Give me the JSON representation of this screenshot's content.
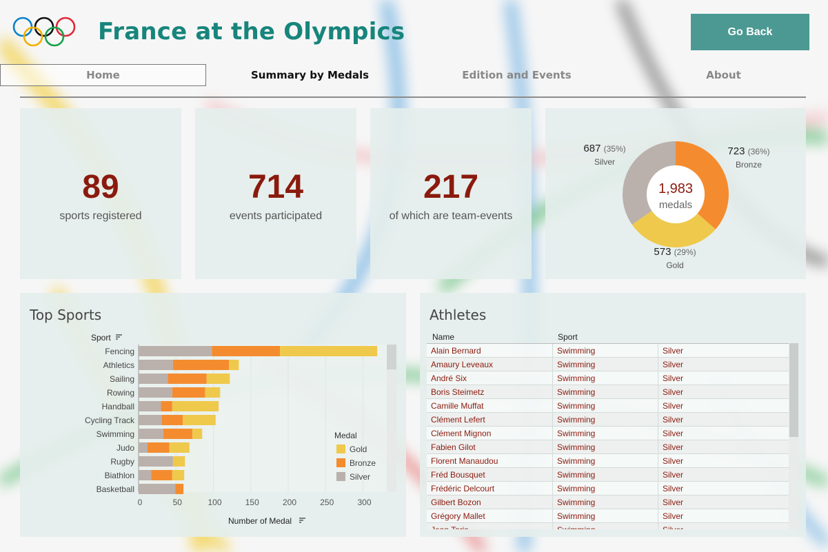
{
  "header": {
    "title": "France at the Olympics",
    "go_back_label": "Go Back"
  },
  "nav": {
    "tabs": [
      "Home",
      "Summary by Medals",
      "Edition and Events",
      "About"
    ],
    "active": "Summary by Medals"
  },
  "kpis": [
    {
      "value": "89",
      "label": "sports registered"
    },
    {
      "value": "714",
      "label": "events participated"
    },
    {
      "value": "217",
      "label": "of which are team-events"
    }
  ],
  "medals_total": {
    "value": "1,983",
    "label": "medals"
  },
  "medal_breakdown": {
    "silver": {
      "value": "687",
      "pct": "(35%)",
      "label": "Silver"
    },
    "bronze": {
      "value": "723",
      "pct": "(36%)",
      "label": "Bronze"
    },
    "gold": {
      "value": "573",
      "pct": "(29%)",
      "label": "Gold"
    }
  },
  "top_sports": {
    "title": "Top Sports",
    "axis_field": "Sport",
    "measure_label": "Number of Medal"
  },
  "colors": {
    "gold": "#efc94c",
    "bronze": "#f48c2f",
    "silver": "#bab0ac",
    "accent": "#17857c",
    "value_red": "#8b1a0e"
  },
  "chart_data": [
    {
      "type": "pie",
      "categories": [
        "Gold",
        "Bronze",
        "Silver"
      ],
      "values": [
        573,
        723,
        687
      ],
      "center_text": "1,983 medals"
    },
    {
      "type": "bar",
      "orientation": "horizontal",
      "stacked": true,
      "categories": [
        "Fencing",
        "Athletics",
        "Sailing",
        "Rowing",
        "Handball",
        "Cycling Track",
        "Swimming",
        "Judo",
        "Rugby",
        "Biathlon",
        "Basketball"
      ],
      "series": [
        {
          "name": "Silver",
          "values": [
            98,
            46,
            39,
            45,
            30,
            31,
            33,
            12,
            46,
            17,
            49
          ]
        },
        {
          "name": "Bronze",
          "values": [
            91,
            75,
            52,
            44,
            15,
            28,
            39,
            29,
            0,
            28,
            11
          ]
        },
        {
          "name": "Gold",
          "values": [
            130,
            13,
            31,
            20,
            62,
            44,
            13,
            27,
            16,
            16,
            0
          ]
        }
      ],
      "xlabel": "Number of Medal",
      "ylabel": "Sport",
      "xlim": [
        0,
        325
      ],
      "xticks": [
        0,
        50,
        100,
        150,
        200,
        250,
        300
      ],
      "legend": {
        "title": "Medal",
        "items": [
          "Gold",
          "Bronze",
          "Silver"
        ],
        "placement": "right"
      },
      "grid": true
    }
  ],
  "athletes": {
    "title": "Athletes",
    "columns": [
      "Name",
      "Sport"
    ],
    "rows": [
      [
        "Alain Bernard",
        "Swimming",
        "Silver"
      ],
      [
        "Amaury Leveaux",
        "Swimming",
        "Silver"
      ],
      [
        "André Six",
        "Swimming",
        "Silver"
      ],
      [
        "Boris Steimetz",
        "Swimming",
        "Silver"
      ],
      [
        "Camille Muffat",
        "Swimming",
        "Silver"
      ],
      [
        "Clément Lefert",
        "Swimming",
        "Silver"
      ],
      [
        "Clément Mignon",
        "Swimming",
        "Silver"
      ],
      [
        "Fabien Gilot",
        "Swimming",
        "Silver"
      ],
      [
        "Florent Manaudou",
        "Swimming",
        "Silver"
      ],
      [
        "Fréd Bousquet",
        "Swimming",
        "Silver"
      ],
      [
        "Frédéric Delcourt",
        "Swimming",
        "Silver"
      ],
      [
        "Gilbert Bozon",
        "Swimming",
        "Silver"
      ],
      [
        "Grégory Mallet",
        "Swimming",
        "Silver"
      ],
      [
        "Jean Taris",
        "Swimming",
        "Silver"
      ]
    ]
  }
}
